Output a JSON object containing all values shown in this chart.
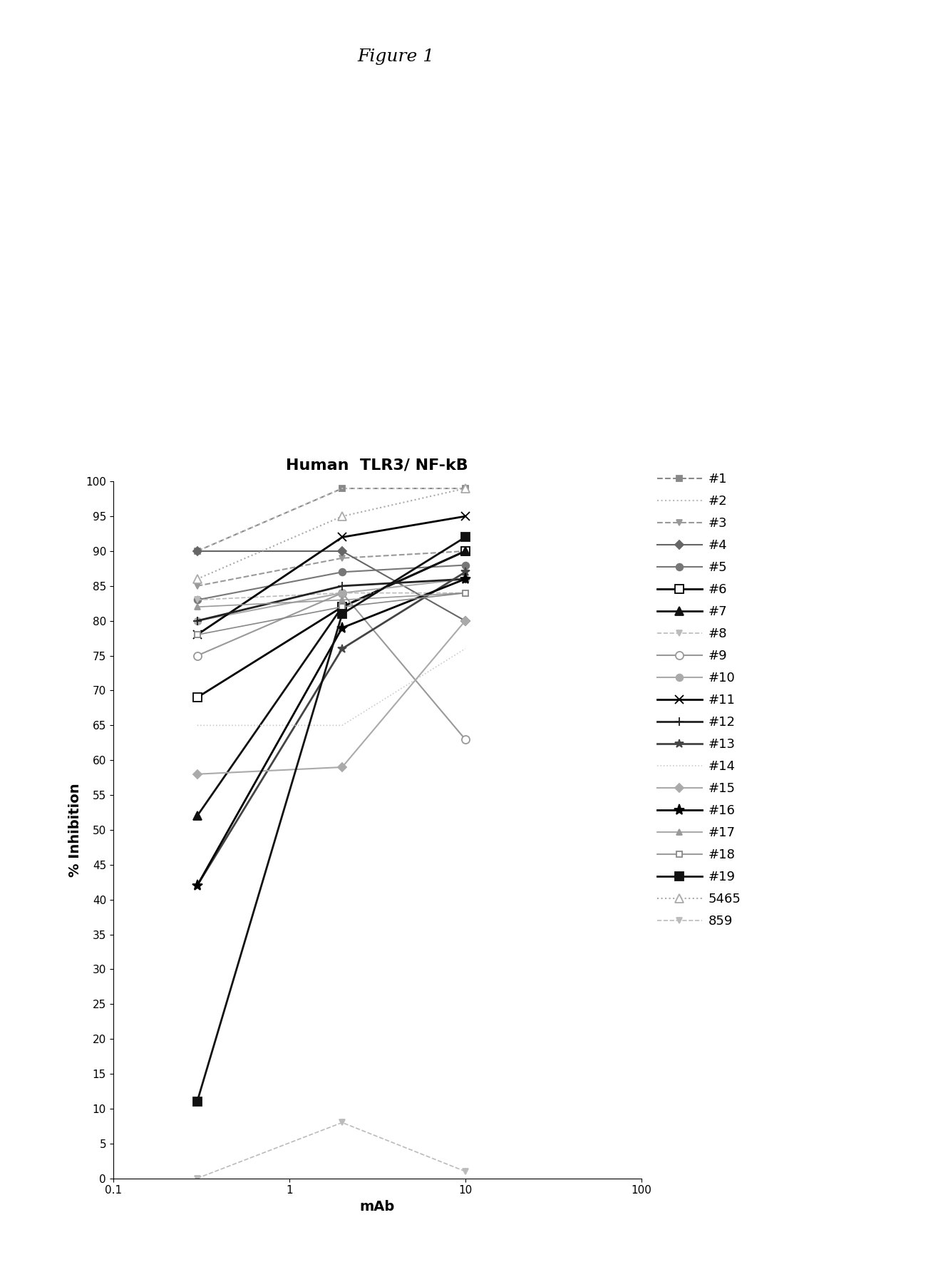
{
  "title": "Human  TLR3/ NF-kB",
  "fig_title": "Figure 1",
  "xlabel": "mAb",
  "ylabel": "% Inhibition",
  "series": [
    {
      "label": "#1",
      "x": [
        0.3,
        2,
        10
      ],
      "y": [
        90,
        99,
        99
      ],
      "color": "#888888",
      "linestyle": "--",
      "lw": 1.5,
      "marker": "s",
      "ms": 6,
      "mfc": "#888888",
      "mec": "#888888"
    },
    {
      "label": "#2",
      "x": [
        0.3,
        2,
        10
      ],
      "y": [
        90,
        99,
        99
      ],
      "color": "#bbbbbb",
      "linestyle": ":",
      "lw": 1.5,
      "marker": "None",
      "ms": 5,
      "mfc": "#bbbbbb",
      "mec": "#bbbbbb"
    },
    {
      "label": "#3",
      "x": [
        0.3,
        2,
        10
      ],
      "y": [
        85,
        89,
        90
      ],
      "color": "#999999",
      "linestyle": "--",
      "lw": 1.5,
      "marker": "v",
      "ms": 6,
      "mfc": "#999999",
      "mec": "#999999"
    },
    {
      "label": "#4",
      "x": [
        0.3,
        2,
        10
      ],
      "y": [
        90,
        90,
        80
      ],
      "color": "#666666",
      "linestyle": "-",
      "lw": 1.5,
      "marker": "D",
      "ms": 6,
      "mfc": "#666666",
      "mec": "#666666"
    },
    {
      "label": "#5",
      "x": [
        0.3,
        2,
        10
      ],
      "y": [
        83,
        87,
        88
      ],
      "color": "#777777",
      "linestyle": "-",
      "lw": 1.5,
      "marker": "o",
      "ms": 7,
      "mfc": "#777777",
      "mec": "#777777"
    },
    {
      "label": "#6",
      "x": [
        0.3,
        2,
        10
      ],
      "y": [
        69,
        82,
        90
      ],
      "color": "#000000",
      "linestyle": "-",
      "lw": 2.0,
      "marker": "s",
      "ms": 9,
      "mfc": "white",
      "mec": "#000000"
    },
    {
      "label": "#7",
      "x": [
        0.3,
        2,
        10
      ],
      "y": [
        52,
        82,
        90
      ],
      "color": "#111111",
      "linestyle": "-",
      "lw": 2.0,
      "marker": "^",
      "ms": 9,
      "mfc": "#111111",
      "mec": "#111111"
    },
    {
      "label": "#8",
      "x": [
        0.3,
        2,
        10
      ],
      "y": [
        83,
        84,
        84
      ],
      "color": "#bbbbbb",
      "linestyle": "--",
      "lw": 1.2,
      "marker": "v",
      "ms": 6,
      "mfc": "#bbbbbb",
      "mec": "#bbbbbb"
    },
    {
      "label": "#9",
      "x": [
        0.3,
        2,
        10
      ],
      "y": [
        75,
        84,
        63
      ],
      "color": "#999999",
      "linestyle": "-",
      "lw": 1.5,
      "marker": "o",
      "ms": 8,
      "mfc": "white",
      "mec": "#999999"
    },
    {
      "label": "#10",
      "x": [
        0.3,
        2,
        10
      ],
      "y": [
        80,
        84,
        86
      ],
      "color": "#aaaaaa",
      "linestyle": "-",
      "lw": 1.5,
      "marker": "o",
      "ms": 7,
      "mfc": "#aaaaaa",
      "mec": "#aaaaaa"
    },
    {
      "label": "#11",
      "x": [
        0.3,
        2,
        10
      ],
      "y": [
        78,
        92,
        95
      ],
      "color": "#000000",
      "linestyle": "-",
      "lw": 2.0,
      "marker": "x",
      "ms": 9,
      "mfc": "#000000",
      "mec": "#000000"
    },
    {
      "label": "#12",
      "x": [
        0.3,
        2,
        10
      ],
      "y": [
        80,
        85,
        86
      ],
      "color": "#222222",
      "linestyle": "-",
      "lw": 2.0,
      "marker": "+",
      "ms": 9,
      "mfc": "#222222",
      "mec": "#222222"
    },
    {
      "label": "#13",
      "x": [
        0.3,
        2,
        10
      ],
      "y": [
        42,
        76,
        87
      ],
      "color": "#444444",
      "linestyle": "-",
      "lw": 2.0,
      "marker": "*",
      "ms": 9,
      "mfc": "#444444",
      "mec": "#444444"
    },
    {
      "label": "#14",
      "x": [
        0.3,
        2,
        10
      ],
      "y": [
        65,
        65,
        76
      ],
      "color": "#cccccc",
      "linestyle": ":",
      "lw": 1.2,
      "marker": "None",
      "ms": 5,
      "mfc": "#cccccc",
      "mec": "#cccccc"
    },
    {
      "label": "#15",
      "x": [
        0.3,
        2,
        10
      ],
      "y": [
        58,
        59,
        80
      ],
      "color": "#aaaaaa",
      "linestyle": "-",
      "lw": 1.5,
      "marker": "D",
      "ms": 6,
      "mfc": "#aaaaaa",
      "mec": "#aaaaaa"
    },
    {
      "label": "#16",
      "x": [
        0.3,
        2,
        10
      ],
      "y": [
        42,
        79,
        86
      ],
      "color": "#000000",
      "linestyle": "-",
      "lw": 2.0,
      "marker": "*",
      "ms": 11,
      "mfc": "#000000",
      "mec": "#000000"
    },
    {
      "label": "#17",
      "x": [
        0.3,
        2,
        10
      ],
      "y": [
        82,
        83,
        84
      ],
      "color": "#999999",
      "linestyle": "-",
      "lw": 1.2,
      "marker": "^",
      "ms": 6,
      "mfc": "#999999",
      "mec": "#999999"
    },
    {
      "label": "#18",
      "x": [
        0.3,
        2,
        10
      ],
      "y": [
        78,
        82,
        84
      ],
      "color": "#888888",
      "linestyle": "-",
      "lw": 1.2,
      "marker": "s",
      "ms": 6,
      "mfc": "white",
      "mec": "#888888"
    },
    {
      "label": "#19",
      "x": [
        0.3,
        2,
        10
      ],
      "y": [
        11,
        81,
        92
      ],
      "color": "#111111",
      "linestyle": "-",
      "lw": 2.0,
      "marker": "s",
      "ms": 9,
      "mfc": "#111111",
      "mec": "#111111"
    },
    {
      "label": "5465",
      "x": [
        0.3,
        2,
        10
      ],
      "y": [
        86,
        95,
        99
      ],
      "color": "#aaaaaa",
      "linestyle": ":",
      "lw": 1.5,
      "marker": "^",
      "ms": 8,
      "mfc": "white",
      "mec": "#aaaaaa"
    },
    {
      "label": "859",
      "x": [
        0.3,
        2,
        10
      ],
      "y": [
        0,
        8,
        1
      ],
      "color": "#bbbbbb",
      "linestyle": "--",
      "lw": 1.2,
      "marker": "v",
      "ms": 6,
      "mfc": "#bbbbbb",
      "mec": "#bbbbbb"
    }
  ]
}
